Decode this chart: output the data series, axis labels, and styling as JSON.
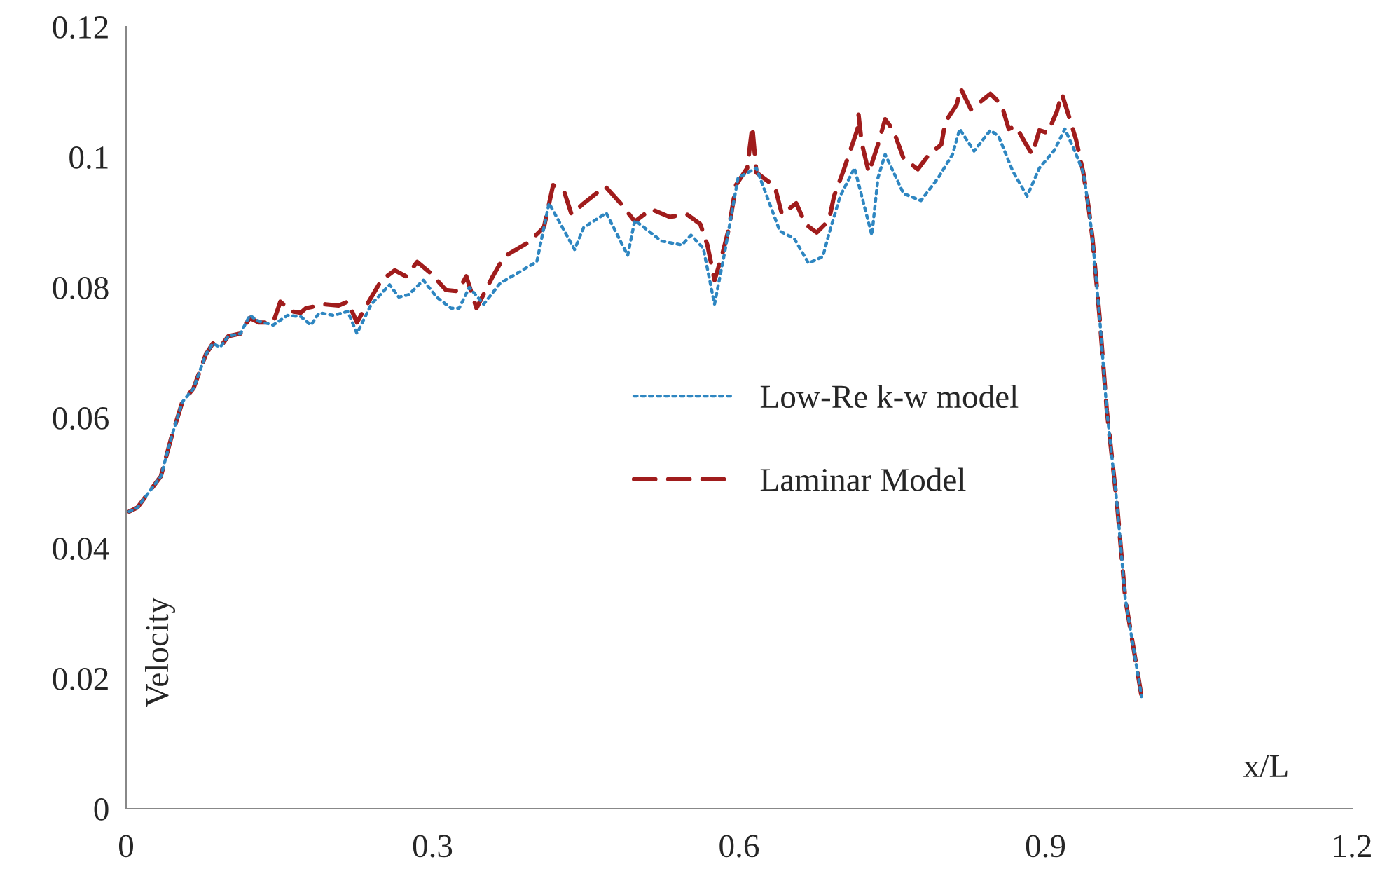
{
  "chart_data": {
    "type": "line",
    "xlabel": "x/L",
    "ylabel": "Velocity",
    "xlim": [
      0,
      1.2
    ],
    "xticks": [
      0,
      0.3,
      0.6,
      0.9,
      1.2
    ],
    "ylim": [
      0,
      0.12
    ],
    "yticks": [
      0,
      0.02,
      0.04,
      0.06,
      0.08,
      0.1,
      0.12
    ],
    "grid": false,
    "legend": "right",
    "series": [
      {
        "name": "Low-Re k-w model",
        "color": "#2e86c1",
        "line_style": "dotted",
        "x": [
          0.003,
          0.011,
          0.034,
          0.044,
          0.055,
          0.066,
          0.078,
          0.085,
          0.092,
          0.1,
          0.112,
          0.121,
          0.13,
          0.144,
          0.158,
          0.171,
          0.181,
          0.189,
          0.203,
          0.217,
          0.226,
          0.24,
          0.258,
          0.267,
          0.277,
          0.291,
          0.304,
          0.318,
          0.326,
          0.336,
          0.35,
          0.366,
          0.394,
          0.402,
          0.414,
          0.439,
          0.448,
          0.47,
          0.491,
          0.498,
          0.524,
          0.544,
          0.553,
          0.565,
          0.576,
          0.586,
          0.599,
          0.617,
          0.64,
          0.654,
          0.668,
          0.682,
          0.688,
          0.699,
          0.713,
          0.73,
          0.736,
          0.743,
          0.761,
          0.778,
          0.795,
          0.809,
          0.816,
          0.83,
          0.846,
          0.854,
          0.868,
          0.882,
          0.894,
          0.909,
          0.919,
          0.93,
          0.937,
          0.942,
          0.946,
          0.953,
          0.96,
          0.97,
          0.978,
          0.994
        ],
        "values": [
          0.0456,
          0.0462,
          0.051,
          0.0568,
          0.0624,
          0.0645,
          0.0697,
          0.0714,
          0.0708,
          0.0725,
          0.0729,
          0.0757,
          0.0748,
          0.0742,
          0.0757,
          0.0755,
          0.0742,
          0.0761,
          0.0757,
          0.0763,
          0.0729,
          0.0774,
          0.0804,
          0.0785,
          0.0789,
          0.0811,
          0.0785,
          0.0768,
          0.0768,
          0.08,
          0.0774,
          0.0806,
          0.0832,
          0.0839,
          0.0929,
          0.0858,
          0.0892,
          0.0914,
          0.0849,
          0.0903,
          0.0871,
          0.0865,
          0.088,
          0.086,
          0.0774,
          0.0854,
          0.0968,
          0.0983,
          0.0886,
          0.0875,
          0.0837,
          0.0847,
          0.0882,
          0.094,
          0.0983,
          0.088,
          0.0968,
          0.1004,
          0.0944,
          0.0933,
          0.0968,
          0.1004,
          0.1043,
          0.1009,
          0.1041,
          0.1032,
          0.0978,
          0.094,
          0.0983,
          0.1011,
          0.1043,
          0.1004,
          0.0976,
          0.0925,
          0.0875,
          0.0753,
          0.0611,
          0.0467,
          0.0323,
          0.0172
        ]
      },
      {
        "name": "Laminar Model",
        "color": "#a01c1c",
        "line_style": "dashed",
        "x": [
          0.003,
          0.011,
          0.034,
          0.044,
          0.055,
          0.066,
          0.078,
          0.085,
          0.092,
          0.1,
          0.112,
          0.121,
          0.13,
          0.144,
          0.151,
          0.162,
          0.171,
          0.176,
          0.195,
          0.208,
          0.217,
          0.226,
          0.236,
          0.25,
          0.263,
          0.274,
          0.285,
          0.298,
          0.313,
          0.325,
          0.333,
          0.343,
          0.359,
          0.37,
          0.394,
          0.409,
          0.418,
          0.429,
          0.436,
          0.448,
          0.469,
          0.484,
          0.498,
          0.514,
          0.532,
          0.549,
          0.562,
          0.569,
          0.576,
          0.583,
          0.59,
          0.597,
          0.608,
          0.613,
          0.617,
          0.635,
          0.642,
          0.656,
          0.665,
          0.676,
          0.688,
          0.693,
          0.702,
          0.716,
          0.717,
          0.72,
          0.727,
          0.736,
          0.743,
          0.751,
          0.761,
          0.775,
          0.786,
          0.798,
          0.802,
          0.813,
          0.817,
          0.827,
          0.846,
          0.857,
          0.864,
          0.871,
          0.88,
          0.887,
          0.894,
          0.902,
          0.911,
          0.916,
          0.923,
          0.93,
          0.937,
          0.942,
          0.946,
          0.953,
          0.96,
          0.97,
          0.978,
          0.994
        ],
        "values": [
          0.0456,
          0.0462,
          0.051,
          0.0568,
          0.0624,
          0.0645,
          0.0697,
          0.0714,
          0.0708,
          0.0725,
          0.0729,
          0.0753,
          0.0746,
          0.0746,
          0.0778,
          0.0763,
          0.0761,
          0.0768,
          0.0774,
          0.0772,
          0.0778,
          0.0746,
          0.0774,
          0.0811,
          0.0826,
          0.0817,
          0.0839,
          0.0822,
          0.0796,
          0.0794,
          0.0817,
          0.0768,
          0.0817,
          0.0847,
          0.0869,
          0.0892,
          0.0957,
          0.0946,
          0.0912,
          0.0929,
          0.0955,
          0.0929,
          0.0901,
          0.092,
          0.0908,
          0.0912,
          0.0897,
          0.0865,
          0.0811,
          0.0847,
          0.089,
          0.0957,
          0.0983,
          0.1047,
          0.0976,
          0.0955,
          0.0912,
          0.0929,
          0.0897,
          0.0884,
          0.0903,
          0.094,
          0.0978,
          0.1043,
          0.1065,
          0.1022,
          0.0976,
          0.1019,
          0.1058,
          0.1041,
          0.0998,
          0.0981,
          0.1004,
          0.1019,
          0.1054,
          0.108,
          0.1105,
          0.1073,
          0.1097,
          0.108,
          0.1043,
          0.1047,
          0.1022,
          0.1004,
          0.1041,
          0.1037,
          0.1069,
          0.1097,
          0.1062,
          0.1026,
          0.0976,
          0.0925,
          0.0875,
          0.0753,
          0.0611,
          0.0467,
          0.0323,
          0.0172
        ]
      }
    ]
  }
}
